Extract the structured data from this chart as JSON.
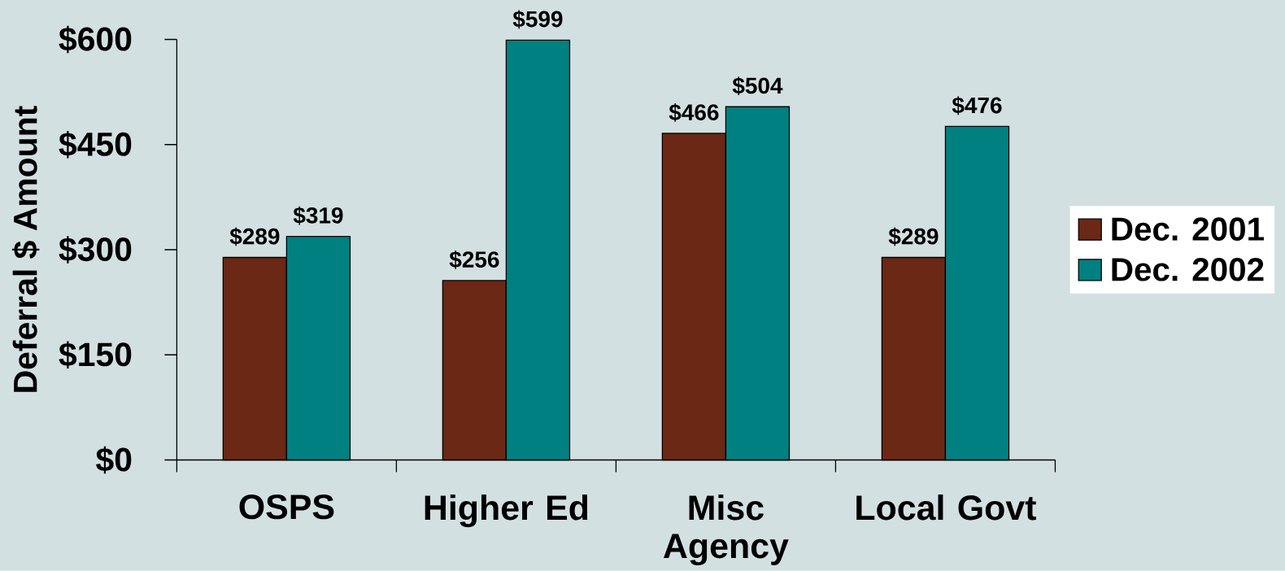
{
  "chart_data": {
    "type": "bar",
    "ylabel": "Deferral $ Amount",
    "categories": [
      "OSPS",
      "Higher Ed",
      "Misc Agency",
      "Local Govt"
    ],
    "series": [
      {
        "name": "Dec. 2001",
        "color": "#6b2814",
        "values": [
          289,
          256,
          466,
          289
        ],
        "value_labels": [
          "$289",
          "$256",
          "$466",
          "$289"
        ]
      },
      {
        "name": "Dec. 2002",
        "color": "#008080",
        "values": [
          319,
          599,
          504,
          476
        ],
        "value_labels": [
          "$319",
          "$599",
          "$504",
          "$476"
        ]
      }
    ],
    "ylim": [
      0,
      600
    ],
    "yticks": [
      {
        "value": 0,
        "label": "$0"
      },
      {
        "value": 150,
        "label": "$150"
      },
      {
        "value": 300,
        "label": "$300"
      },
      {
        "value": 450,
        "label": "$450"
      },
      {
        "value": 600,
        "label": "$600"
      }
    ],
    "legend": "right"
  }
}
